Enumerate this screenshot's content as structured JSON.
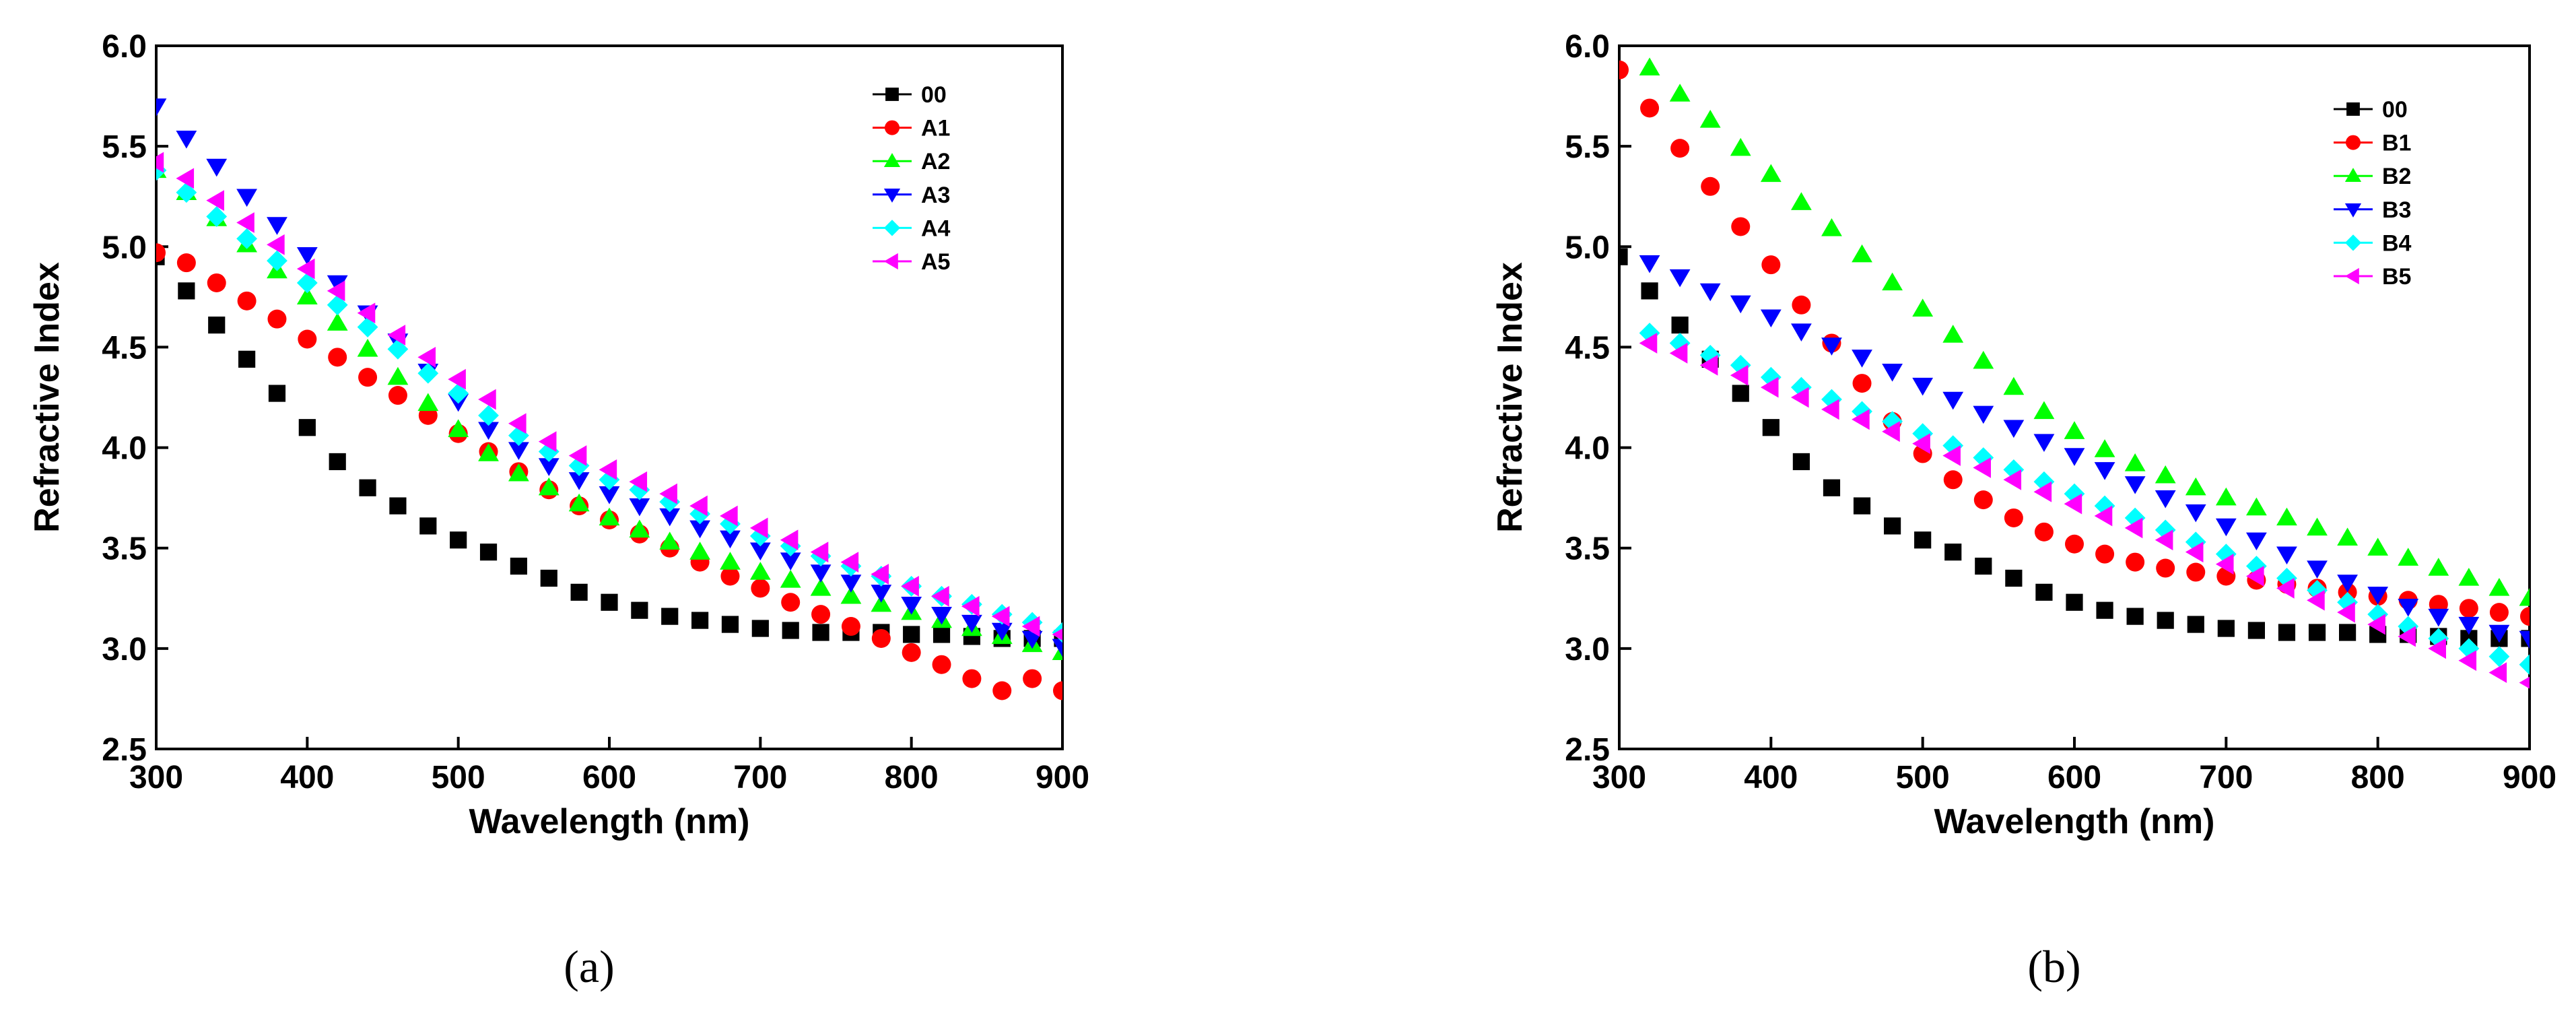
{
  "chart_data": [
    {
      "type": "scatter",
      "panel_label": "(a)",
      "xlabel": "Wavelength (nm)",
      "ylabel": "Refractive Index",
      "xlim": [
        300,
        900
      ],
      "ylim": [
        2.5,
        6.0
      ],
      "xticks": [
        300,
        400,
        500,
        600,
        700,
        800,
        900
      ],
      "yticks": [
        2.5,
        3.0,
        3.5,
        4.0,
        4.5,
        5.0,
        5.5,
        6.0
      ],
      "ytick_labels": [
        "2.5",
        "3.0",
        "3.5",
        "4.0",
        "4.5",
        "5.0",
        "5.5",
        "6.0"
      ],
      "legend_position": "top-right",
      "series": [
        {
          "name": "00",
          "color": "#000000",
          "marker": "square",
          "x": [
            300,
            320,
            340,
            360,
            380,
            400,
            420,
            440,
            460,
            480,
            500,
            520,
            540,
            560,
            580,
            600,
            620,
            640,
            660,
            680,
            700,
            720,
            740,
            760,
            780,
            800,
            820,
            840,
            860,
            880,
            900
          ],
          "y": [
            4.95,
            4.78,
            4.61,
            4.44,
            4.27,
            4.1,
            3.93,
            3.8,
            3.71,
            3.61,
            3.54,
            3.48,
            3.41,
            3.35,
            3.28,
            3.23,
            3.19,
            3.16,
            3.14,
            3.12,
            3.1,
            3.09,
            3.08,
            3.08,
            3.08,
            3.07,
            3.07,
            3.06,
            3.05,
            3.05,
            3.05
          ]
        },
        {
          "name": "A1",
          "color": "#ff0000",
          "marker": "circle",
          "x": [
            300,
            320,
            340,
            360,
            380,
            400,
            420,
            440,
            460,
            480,
            500,
            520,
            540,
            560,
            580,
            600,
            620,
            640,
            660,
            680,
            700,
            720,
            740,
            760,
            780,
            800,
            820,
            840,
            860,
            880,
            900
          ],
          "y": [
            4.97,
            4.92,
            4.82,
            4.73,
            4.64,
            4.54,
            4.45,
            4.35,
            4.26,
            4.16,
            4.07,
            3.98,
            3.88,
            3.79,
            3.71,
            3.64,
            3.57,
            3.5,
            3.43,
            3.36,
            3.3,
            3.23,
            3.17,
            3.11,
            3.05,
            2.98,
            2.92,
            2.85,
            2.79,
            2.85,
            2.79
          ]
        },
        {
          "name": "A2",
          "color": "#00ff00",
          "marker": "triangle-up",
          "x": [
            300,
            320,
            340,
            360,
            380,
            400,
            420,
            440,
            460,
            480,
            500,
            520,
            540,
            560,
            580,
            600,
            620,
            640,
            660,
            680,
            700,
            720,
            740,
            760,
            780,
            800,
            820,
            840,
            860,
            880,
            900
          ],
          "y": [
            5.38,
            5.27,
            5.14,
            5.01,
            4.88,
            4.75,
            4.62,
            4.49,
            4.35,
            4.22,
            4.09,
            3.97,
            3.87,
            3.8,
            3.72,
            3.65,
            3.59,
            3.53,
            3.48,
            3.43,
            3.38,
            3.34,
            3.3,
            3.26,
            3.22,
            3.18,
            3.14,
            3.1,
            3.06,
            3.02,
            2.98
          ]
        },
        {
          "name": "A3",
          "color": "#0000ff",
          "marker": "triangle-down",
          "x": [
            300,
            320,
            340,
            360,
            380,
            400,
            420,
            440,
            460,
            480,
            500,
            520,
            540,
            560,
            580,
            600,
            620,
            640,
            660,
            680,
            700,
            720,
            740,
            760,
            780,
            800,
            820,
            840,
            860,
            880,
            900
          ],
          "y": [
            5.7,
            5.54,
            5.4,
            5.25,
            5.11,
            4.96,
            4.82,
            4.67,
            4.53,
            4.38,
            4.23,
            4.09,
            3.99,
            3.91,
            3.84,
            3.77,
            3.71,
            3.66,
            3.6,
            3.55,
            3.49,
            3.44,
            3.38,
            3.33,
            3.28,
            3.22,
            3.17,
            3.13,
            3.09,
            3.05,
            3.01
          ]
        },
        {
          "name": "A4",
          "color": "#00ffff",
          "marker": "diamond",
          "x": [
            300,
            320,
            340,
            360,
            380,
            400,
            420,
            440,
            460,
            480,
            500,
            520,
            540,
            560,
            580,
            600,
            620,
            640,
            660,
            680,
            700,
            720,
            740,
            760,
            780,
            800,
            820,
            840,
            860,
            880,
            900
          ],
          "y": [
            5.38,
            5.27,
            5.15,
            5.04,
            4.93,
            4.82,
            4.71,
            4.6,
            4.49,
            4.37,
            4.27,
            4.16,
            4.06,
            3.98,
            3.91,
            3.84,
            3.79,
            3.73,
            3.67,
            3.62,
            3.56,
            3.51,
            3.46,
            3.41,
            3.36,
            3.31,
            3.26,
            3.22,
            3.17,
            3.13,
            3.08
          ]
        },
        {
          "name": "A5",
          "color": "#ff00ff",
          "marker": "triangle-left",
          "x": [
            300,
            320,
            340,
            360,
            380,
            400,
            420,
            440,
            460,
            480,
            500,
            520,
            540,
            560,
            580,
            600,
            620,
            640,
            660,
            680,
            700,
            720,
            740,
            760,
            780,
            800,
            820,
            840,
            860,
            880,
            900
          ],
          "y": [
            5.42,
            5.34,
            5.23,
            5.12,
            5.01,
            4.89,
            4.78,
            4.67,
            4.56,
            4.45,
            4.34,
            4.24,
            4.12,
            4.03,
            3.96,
            3.89,
            3.83,
            3.77,
            3.71,
            3.66,
            3.6,
            3.54,
            3.48,
            3.43,
            3.37,
            3.31,
            3.26,
            3.21,
            3.16,
            3.11,
            3.07
          ]
        }
      ]
    },
    {
      "type": "scatter",
      "panel_label": "(b)",
      "xlabel": "Wavelength (nm)",
      "ylabel": "Refractive Index",
      "xlim": [
        300,
        900
      ],
      "ylim": [
        2.5,
        6.0
      ],
      "xticks": [
        300,
        400,
        500,
        600,
        700,
        800,
        900
      ],
      "yticks": [
        2.5,
        3.0,
        3.5,
        4.0,
        4.5,
        5.0,
        5.5,
        6.0
      ],
      "ytick_labels": [
        "2.5",
        "3.0",
        "3.5",
        "4.0",
        "4.5",
        "5.0",
        "5.5",
        "6.0"
      ],
      "legend_position": "top-right",
      "series": [
        {
          "name": "00",
          "color": "#000000",
          "marker": "square",
          "x": [
            300,
            320,
            340,
            360,
            380,
            400,
            420,
            440,
            460,
            480,
            500,
            520,
            540,
            560,
            580,
            600,
            620,
            640,
            660,
            680,
            700,
            720,
            740,
            760,
            780,
            800,
            820,
            840,
            860,
            880,
            900
          ],
          "y": [
            4.95,
            4.78,
            4.61,
            4.44,
            4.27,
            4.1,
            3.93,
            3.8,
            3.71,
            3.61,
            3.54,
            3.48,
            3.41,
            3.35,
            3.28,
            3.23,
            3.19,
            3.16,
            3.14,
            3.12,
            3.1,
            3.09,
            3.08,
            3.08,
            3.08,
            3.07,
            3.07,
            3.06,
            3.05,
            3.05,
            3.05
          ]
        },
        {
          "name": "B1",
          "color": "#ff0000",
          "marker": "circle",
          "x": [
            300,
            320,
            340,
            360,
            380,
            400,
            420,
            440,
            460,
            480,
            500,
            520,
            540,
            560,
            580,
            600,
            620,
            640,
            660,
            680,
            700,
            720,
            740,
            760,
            780,
            800,
            820,
            840,
            860,
            880,
            900
          ],
          "y": [
            5.88,
            5.69,
            5.49,
            5.3,
            5.1,
            4.91,
            4.71,
            4.52,
            4.32,
            4.13,
            3.97,
            3.84,
            3.74,
            3.65,
            3.58,
            3.52,
            3.47,
            3.43,
            3.4,
            3.38,
            3.36,
            3.34,
            3.32,
            3.3,
            3.28,
            3.26,
            3.24,
            3.22,
            3.2,
            3.18,
            3.16
          ]
        },
        {
          "name": "B2",
          "color": "#00ff00",
          "marker": "triangle-up",
          "x": [
            320,
            340,
            360,
            380,
            400,
            420,
            440,
            460,
            480,
            500,
            520,
            540,
            560,
            580,
            600,
            620,
            640,
            660,
            680,
            700,
            720,
            740,
            760,
            780,
            800,
            820,
            840,
            860,
            880,
            900
          ],
          "y": [
            5.89,
            5.76,
            5.63,
            5.49,
            5.36,
            5.22,
            5.09,
            4.96,
            4.82,
            4.69,
            4.56,
            4.43,
            4.3,
            4.18,
            4.08,
            3.99,
            3.92,
            3.86,
            3.8,
            3.75,
            3.7,
            3.65,
            3.6,
            3.55,
            3.5,
            3.45,
            3.4,
            3.35,
            3.3,
            3.25
          ]
        },
        {
          "name": "B3",
          "color": "#0000ff",
          "marker": "triangle-down",
          "x": [
            320,
            340,
            360,
            380,
            400,
            420,
            440,
            460,
            480,
            500,
            520,
            540,
            560,
            580,
            600,
            620,
            640,
            660,
            680,
            700,
            720,
            740,
            760,
            780,
            800,
            820,
            840,
            860,
            880,
            900
          ],
          "y": [
            4.92,
            4.85,
            4.78,
            4.72,
            4.65,
            4.58,
            4.51,
            4.45,
            4.38,
            4.31,
            4.24,
            4.17,
            4.1,
            4.03,
            3.96,
            3.89,
            3.82,
            3.75,
            3.68,
            3.61,
            3.54,
            3.47,
            3.4,
            3.33,
            3.27,
            3.21,
            3.16,
            3.12,
            3.08,
            3.05
          ]
        },
        {
          "name": "B4",
          "color": "#00ffff",
          "marker": "diamond",
          "x": [
            320,
            340,
            360,
            380,
            400,
            420,
            440,
            460,
            480,
            500,
            520,
            540,
            560,
            580,
            600,
            620,
            640,
            660,
            680,
            700,
            720,
            740,
            760,
            780,
            800,
            820,
            840,
            860,
            880,
            900
          ],
          "y": [
            4.57,
            4.52,
            4.46,
            4.41,
            4.35,
            4.3,
            4.24,
            4.18,
            4.13,
            4.07,
            4.01,
            3.95,
            3.89,
            3.83,
            3.77,
            3.71,
            3.65,
            3.59,
            3.53,
            3.47,
            3.41,
            3.35,
            3.29,
            3.23,
            3.17,
            3.11,
            3.05,
            3.0,
            2.96,
            2.92
          ]
        },
        {
          "name": "B5",
          "color": "#ff00ff",
          "marker": "triangle-left",
          "x": [
            320,
            340,
            360,
            380,
            400,
            420,
            440,
            460,
            480,
            500,
            520,
            540,
            560,
            580,
            600,
            620,
            640,
            660,
            680,
            700,
            720,
            740,
            760,
            780,
            800,
            820,
            840,
            860,
            880,
            900
          ],
          "y": [
            4.52,
            4.47,
            4.41,
            4.36,
            4.3,
            4.25,
            4.19,
            4.14,
            4.08,
            4.02,
            3.96,
            3.9,
            3.84,
            3.78,
            3.72,
            3.66,
            3.6,
            3.54,
            3.48,
            3.42,
            3.36,
            3.3,
            3.24,
            3.18,
            3.12,
            3.06,
            3.0,
            2.94,
            2.88,
            2.83
          ]
        }
      ]
    }
  ]
}
